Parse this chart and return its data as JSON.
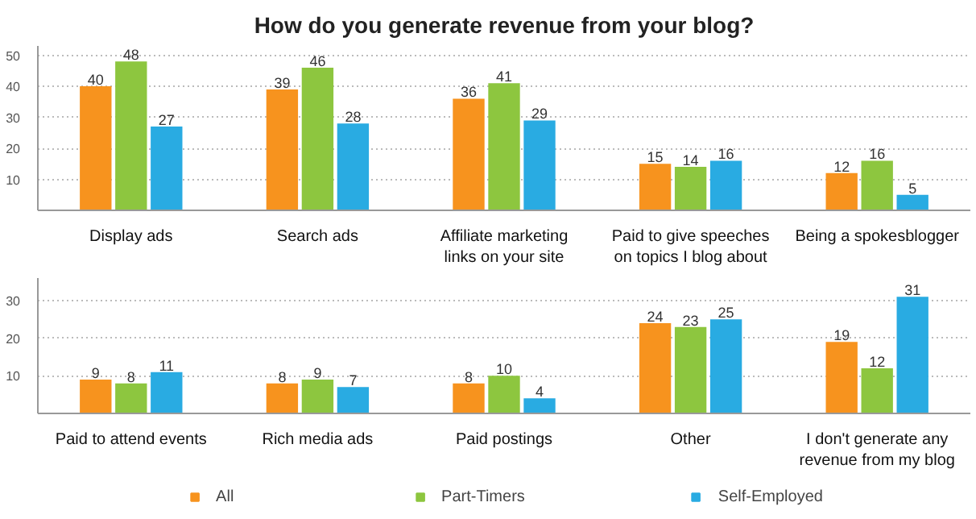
{
  "chart_data": [
    {
      "type": "bar",
      "title": "How do you generate revenue from your blog?",
      "categories": [
        "Display ads",
        "Search ads",
        "Affiliate marketing links on your site",
        "Paid to give speeches on topics I blog about",
        "Being a spokesblogger"
      ],
      "series": [
        {
          "color": "#f7931e",
          "values": [
            40,
            39,
            36,
            15,
            12
          ]
        },
        {
          "color": "#8dc63f",
          "values": [
            48,
            46,
            41,
            14,
            16
          ]
        },
        {
          "color": "#29abe2",
          "values": [
            27,
            28,
            29,
            16,
            5
          ]
        }
      ],
      "ylim": [
        0,
        53
      ],
      "yticks": [
        10,
        20,
        30,
        40,
        50
      ],
      "grid": "y",
      "data_labels": true,
      "legend": false
    },
    {
      "type": "bar",
      "categories": [
        "Paid to attend events",
        "Rich media ads",
        "Paid postings",
        "Other",
        "I don't generate any revenue from my blog"
      ],
      "series": [
        {
          "name": "All",
          "color": "#f7931e",
          "values": [
            9,
            8,
            8,
            24,
            19
          ]
        },
        {
          "name": "Part-Timers",
          "color": "#8dc63f",
          "values": [
            8,
            9,
            10,
            23,
            12
          ]
        },
        {
          "name": "Self-Employed",
          "color": "#29abe2",
          "values": [
            11,
            7,
            4,
            25,
            31
          ]
        }
      ],
      "ylim": [
        0,
        36
      ],
      "yticks": [
        10,
        20,
        30
      ],
      "grid": "y",
      "data_labels": true,
      "legend": "bottom"
    }
  ]
}
